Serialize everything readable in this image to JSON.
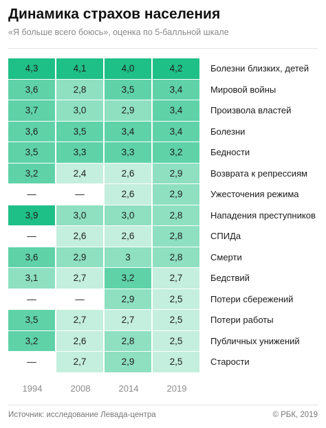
{
  "header": {
    "title": "Динамика страхов населения",
    "subtitle": "«Я больше всего боюсь», оценка по 5-балльной шкале"
  },
  "footer": {
    "source": "Источник: исследование Левада-центра",
    "copyright": "© РБК, 2019"
  },
  "colors": {
    "level_high": "#1fbf88",
    "level_mid_high": "#5fd2a8",
    "level_mid": "#8ee0c0",
    "level_low": "#c4eedd",
    "level_empty": "#ffffff"
  },
  "chart_data": {
    "type": "heatmap",
    "title": "Динамика страхов населения",
    "subtitle": "«Я больше всего боюсь», оценка по 5-балльной шкале",
    "columns": [
      "1994",
      "2008",
      "2014",
      "2019"
    ],
    "rows": [
      {
        "label": "Болезни близких, детей",
        "values": [
          "4,3",
          "4,1",
          "4,0",
          "4,2"
        ]
      },
      {
        "label": "Мировой войны",
        "values": [
          "3,6",
          "2,8",
          "3,5",
          "3,4"
        ]
      },
      {
        "label": "Произвола властей",
        "values": [
          "3,7",
          "3,0",
          "2,9",
          "3,4"
        ]
      },
      {
        "label": "Болезни",
        "values": [
          "3,6",
          "3,5",
          "3,4",
          "3,4"
        ]
      },
      {
        "label": "Бедности",
        "values": [
          "3,5",
          "3,3",
          "3,3",
          "3,2"
        ]
      },
      {
        "label": "Возврата к репрессиям",
        "values": [
          "3,2",
          "2,4",
          "2,6",
          "2,9"
        ]
      },
      {
        "label": "Ужесточения режима",
        "values": [
          "—",
          "—",
          "2,6",
          "2,9"
        ]
      },
      {
        "label": "Нападения преступников",
        "values": [
          "3,9",
          "3,0",
          "3,0",
          "2,8"
        ]
      },
      {
        "label": "СПИДа",
        "values": [
          "—",
          "2,6",
          "2,6",
          "2,8"
        ]
      },
      {
        "label": "Смерти",
        "values": [
          "3,6",
          "2,9",
          "3",
          "2,8"
        ]
      },
      {
        "label": "Бедствий",
        "values": [
          "3,1",
          "2,7",
          "3,2",
          "2,7"
        ]
      },
      {
        "label": "Потери сбережений",
        "values": [
          "—",
          "—",
          "2,9",
          "2,5"
        ]
      },
      {
        "label": "Потери работы",
        "values": [
          "3,5",
          "2,7",
          "2,7",
          "2,5"
        ]
      },
      {
        "label": "Публичных унижений",
        "values": [
          "3,2",
          "2,6",
          "2,8",
          "2,5"
        ]
      },
      {
        "label": "Старости",
        "values": [
          "—",
          "2,7",
          "2,9",
          "2,5"
        ]
      }
    ]
  }
}
